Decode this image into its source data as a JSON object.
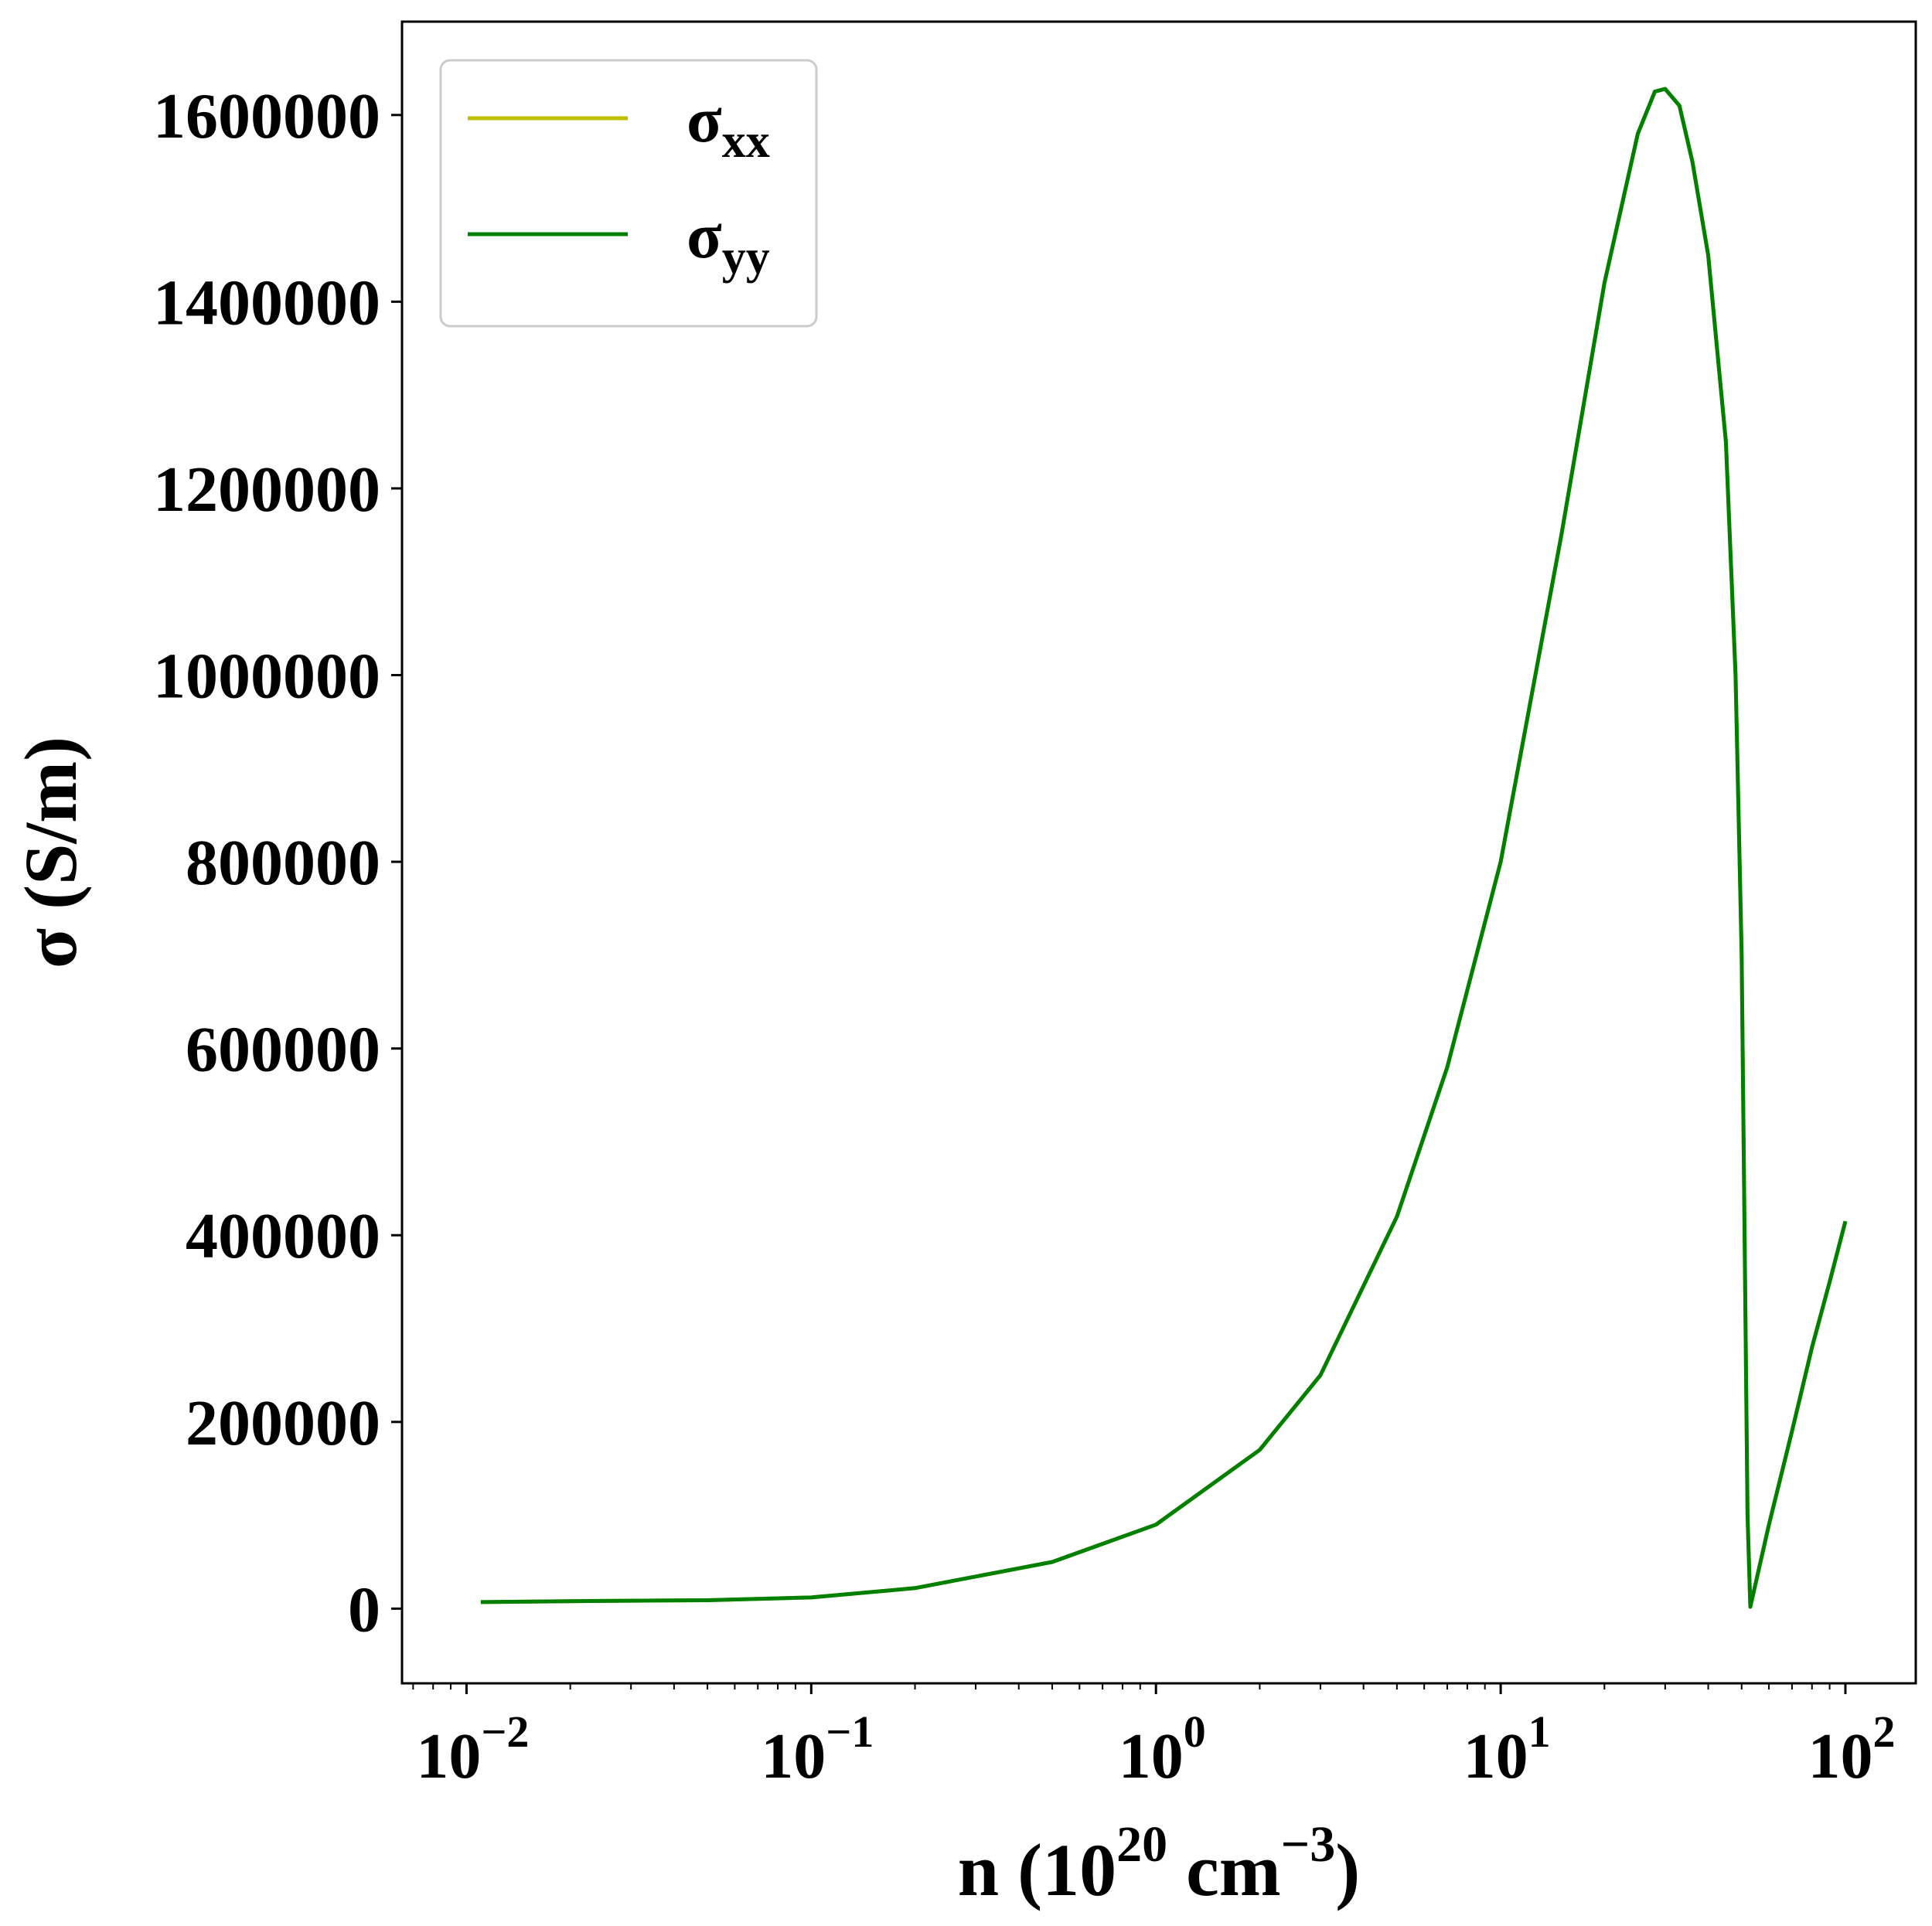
{
  "chart_data": {
    "type": "line",
    "title": "",
    "xlabel": {
      "base": "n (10",
      "exp1": "20",
      "mid": " cm",
      "exp2": "−3",
      "end": ")"
    },
    "ylabel": "σ (S/m)",
    "xscale": "log",
    "xlim": [
      0.0065,
      160
    ],
    "ylim": [
      -80000,
      1700000
    ],
    "grid": false,
    "legend_position": "top-left",
    "x_ticks": [
      {
        "value": 0.01,
        "base": "10",
        "exp": "−2"
      },
      {
        "value": 0.1,
        "base": "10",
        "exp": "−1"
      },
      {
        "value": 1,
        "base": "10",
        "exp": "0"
      },
      {
        "value": 10,
        "base": "10",
        "exp": "1"
      },
      {
        "value": 100,
        "base": "10",
        "exp": "2"
      }
    ],
    "y_ticks": [
      {
        "value": 0,
        "label": "0"
      },
      {
        "value": 200000,
        "label": "200000"
      },
      {
        "value": 400000,
        "label": "400000"
      },
      {
        "value": 600000,
        "label": "600000"
      },
      {
        "value": 800000,
        "label": "800000"
      },
      {
        "value": 1000000,
        "label": "1000000"
      },
      {
        "value": 1200000,
        "label": "1200000"
      },
      {
        "value": 1400000,
        "label": "1400000"
      },
      {
        "value": 1600000,
        "label": "1600000"
      }
    ],
    "series": [
      {
        "name": "σ",
        "sub": "xx",
        "color": "#bfbf00",
        "x": [
          0.011,
          0.02,
          0.05,
          0.1,
          0.2,
          0.5,
          1,
          2,
          3,
          5,
          7,
          10,
          15,
          20,
          25,
          28,
          30,
          33,
          36,
          40,
          45,
          48,
          50,
          51,
          52,
          53,
          60,
          70,
          80,
          90,
          100
        ],
        "y": [
          7000,
          8000,
          9000,
          12000,
          22000,
          50000,
          90000,
          170000,
          250000,
          420000,
          580000,
          800000,
          1150000,
          1420000,
          1580000,
          1625000,
          1628000,
          1610000,
          1550000,
          1450000,
          1250000,
          1000000,
          700000,
          400000,
          100000,
          2000,
          90000,
          190000,
          280000,
          350000,
          415000
        ]
      },
      {
        "name": "σ",
        "sub": "yy",
        "color": "#008000",
        "x": [
          0.011,
          0.02,
          0.05,
          0.1,
          0.2,
          0.5,
          1,
          2,
          3,
          5,
          7,
          10,
          15,
          20,
          25,
          28,
          30,
          33,
          36,
          40,
          45,
          48,
          50,
          51,
          52,
          53,
          60,
          70,
          80,
          90,
          100
        ],
        "y": [
          7000,
          8000,
          9000,
          12000,
          22000,
          50000,
          90000,
          170000,
          250000,
          420000,
          580000,
          800000,
          1150000,
          1420000,
          1580000,
          1625000,
          1628000,
          1610000,
          1550000,
          1450000,
          1250000,
          1000000,
          700000,
          400000,
          100000,
          2000,
          90000,
          190000,
          280000,
          350000,
          415000
        ]
      }
    ]
  }
}
